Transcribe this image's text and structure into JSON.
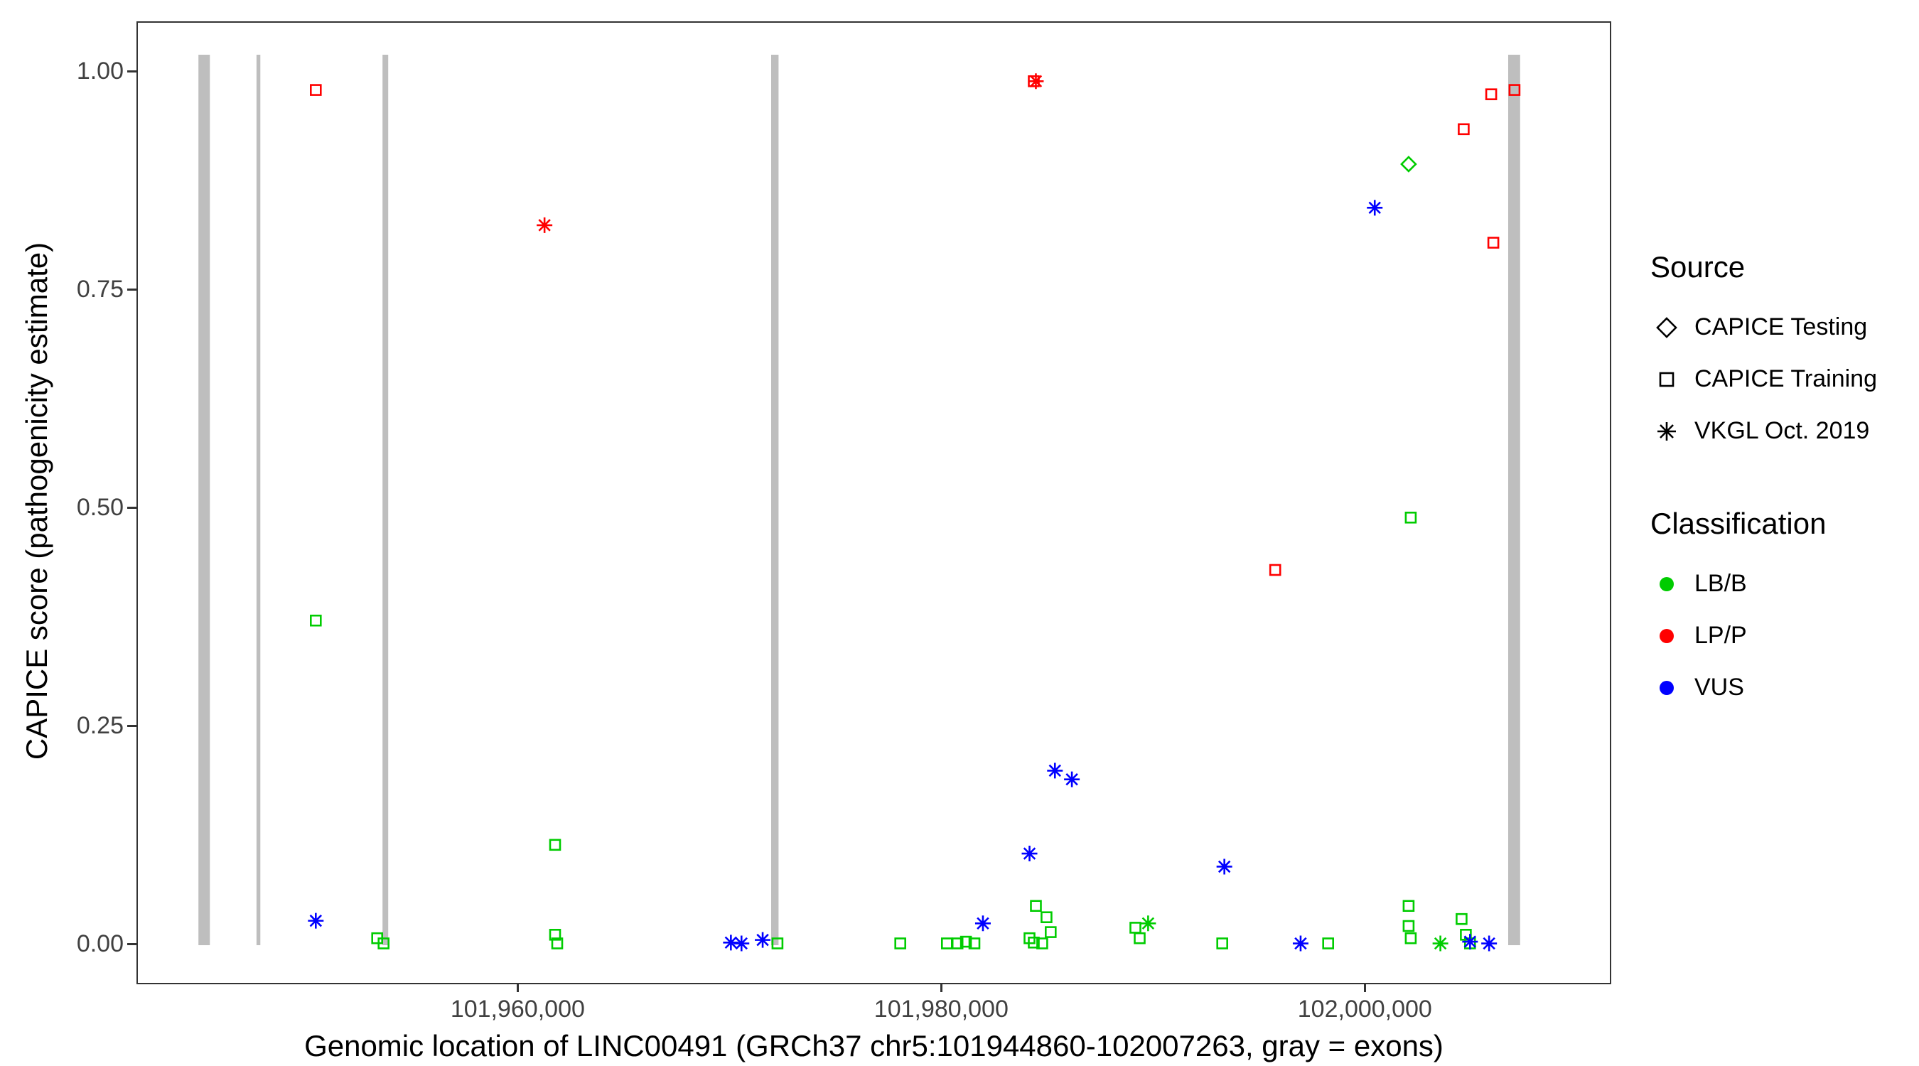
{
  "figure": {
    "background": "#FFFFFF"
  },
  "axes": {
    "y_title": "CAPICE score (pathogenicity estimate)",
    "x_title": "Genomic location of LINC00491 (GRCh37 chr5:101944860-102007263, gray = exons)",
    "y_ticks": [
      "0.00",
      "0.25",
      "0.50",
      "0.75",
      "1.00"
    ],
    "x_ticks": [
      "101,960,000",
      "101,980,000",
      "102,000,000"
    ]
  },
  "legend": {
    "source": {
      "title": "Source",
      "items": [
        {
          "shape": "diamond",
          "label": "CAPICE Testing"
        },
        {
          "shape": "square",
          "label": "CAPICE Training"
        },
        {
          "shape": "asterisk",
          "label": "VKGL Oct. 2019"
        }
      ]
    },
    "classification": {
      "title": "Classification",
      "items": [
        {
          "color": "#00CC00",
          "label": "LB/B"
        },
        {
          "color": "#FF0000",
          "label": "LP/P"
        },
        {
          "color": "#0000FF",
          "label": "VUS"
        }
      ]
    }
  },
  "chart_data": {
    "type": "scatter",
    "title": "",
    "xlabel": "Genomic location of LINC00491 (GRCh37 chr5:101944860-102007263, gray = exons)",
    "ylabel": "CAPICE score (pathogenicity estimate)",
    "xlim": [
      101942000,
      102011500
    ],
    "ylim": [
      0,
      1
    ],
    "grid": false,
    "legend_position": "right",
    "x_tick_values": [
      101960000,
      101980000,
      102000000
    ],
    "y_tick_values": [
      0,
      0.25,
      0.5,
      0.75,
      1.0
    ],
    "exon_color": "#BEBEBE",
    "exons_gray": [
      [
        101944860,
        101945400
      ],
      [
        101947600,
        101947780
      ],
      [
        101953550,
        101953820
      ],
      [
        101971900,
        101972250
      ],
      [
        102006700,
        102007263
      ]
    ],
    "colors": {
      "LB/B": "#00CC00",
      "LP/P": "#FF0000",
      "VUS": "#0000FF"
    },
    "shapes": {
      "CAPICE Testing": "diamond",
      "CAPICE Training": "square",
      "VKGL Oct. 2019": "asterisk"
    },
    "points": [
      {
        "x": 101950400,
        "y": 0.98,
        "source": "CAPICE Training",
        "class": "LP/P"
      },
      {
        "x": 101961200,
        "y": 0.825,
        "source": "VKGL Oct. 2019",
        "class": "LP/P"
      },
      {
        "x": 101984300,
        "y": 0.99,
        "source": "CAPICE Training",
        "class": "LP/P"
      },
      {
        "x": 101984400,
        "y": 0.99,
        "source": "VKGL Oct. 2019",
        "class": "LP/P"
      },
      {
        "x": 101995700,
        "y": 0.43,
        "source": "CAPICE Training",
        "class": "LP/P"
      },
      {
        "x": 102004600,
        "y": 0.935,
        "source": "CAPICE Training",
        "class": "LP/P"
      },
      {
        "x": 102005900,
        "y": 0.975,
        "source": "CAPICE Training",
        "class": "LP/P"
      },
      {
        "x": 102007000,
        "y": 0.98,
        "source": "CAPICE Training",
        "class": "LP/P"
      },
      {
        "x": 102006000,
        "y": 0.805,
        "source": "CAPICE Training",
        "class": "LP/P"
      },
      {
        "x": 102002000,
        "y": 0.895,
        "source": "CAPICE Testing",
        "class": "LB/B"
      },
      {
        "x": 101950400,
        "y": 0.372,
        "source": "CAPICE Training",
        "class": "LB/B"
      },
      {
        "x": 101961700,
        "y": 0.115,
        "source": "CAPICE Training",
        "class": "LB/B"
      },
      {
        "x": 102002100,
        "y": 0.49,
        "source": "CAPICE Training",
        "class": "LB/B"
      },
      {
        "x": 101953300,
        "y": 0.008,
        "source": "CAPICE Training",
        "class": "LB/B"
      },
      {
        "x": 101953600,
        "y": 0.002,
        "source": "CAPICE Training",
        "class": "LB/B"
      },
      {
        "x": 101961700,
        "y": 0.012,
        "source": "CAPICE Training",
        "class": "LB/B"
      },
      {
        "x": 101961800,
        "y": 0.002,
        "source": "CAPICE Training",
        "class": "LB/B"
      },
      {
        "x": 101972200,
        "y": 0.002,
        "source": "CAPICE Training",
        "class": "LB/B"
      },
      {
        "x": 101978000,
        "y": 0.002,
        "source": "CAPICE Training",
        "class": "LB/B"
      },
      {
        "x": 101980200,
        "y": 0.002,
        "source": "CAPICE Training",
        "class": "LB/B"
      },
      {
        "x": 101980700,
        "y": 0.002,
        "source": "CAPICE Training",
        "class": "LB/B"
      },
      {
        "x": 101981100,
        "y": 0.004,
        "source": "CAPICE Training",
        "class": "LB/B"
      },
      {
        "x": 101981500,
        "y": 0.002,
        "source": "CAPICE Training",
        "class": "LB/B"
      },
      {
        "x": 101984400,
        "y": 0.045,
        "source": "CAPICE Training",
        "class": "LB/B"
      },
      {
        "x": 101984900,
        "y": 0.032,
        "source": "CAPICE Training",
        "class": "LB/B"
      },
      {
        "x": 101985100,
        "y": 0.015,
        "source": "CAPICE Training",
        "class": "LB/B"
      },
      {
        "x": 101984100,
        "y": 0.008,
        "source": "CAPICE Training",
        "class": "LB/B"
      },
      {
        "x": 101984300,
        "y": 0.003,
        "source": "CAPICE Training",
        "class": "LB/B"
      },
      {
        "x": 101984700,
        "y": 0.002,
        "source": "CAPICE Training",
        "class": "LB/B"
      },
      {
        "x": 101989100,
        "y": 0.02,
        "source": "CAPICE Training",
        "class": "LB/B"
      },
      {
        "x": 101989300,
        "y": 0.008,
        "source": "CAPICE Training",
        "class": "LB/B"
      },
      {
        "x": 101989700,
        "y": 0.025,
        "source": "VKGL Oct. 2019",
        "class": "LB/B"
      },
      {
        "x": 101993200,
        "y": 0.002,
        "source": "CAPICE Training",
        "class": "LB/B"
      },
      {
        "x": 101998200,
        "y": 0.002,
        "source": "CAPICE Training",
        "class": "LB/B"
      },
      {
        "x": 102002000,
        "y": 0.045,
        "source": "CAPICE Training",
        "class": "LB/B"
      },
      {
        "x": 102002000,
        "y": 0.022,
        "source": "CAPICE Training",
        "class": "LB/B"
      },
      {
        "x": 102002100,
        "y": 0.008,
        "source": "CAPICE Training",
        "class": "LB/B"
      },
      {
        "x": 102003500,
        "y": 0.002,
        "source": "VKGL Oct. 2019",
        "class": "LB/B"
      },
      {
        "x": 102004500,
        "y": 0.03,
        "source": "CAPICE Training",
        "class": "LB/B"
      },
      {
        "x": 102004700,
        "y": 0.012,
        "source": "CAPICE Training",
        "class": "LB/B"
      },
      {
        "x": 102004900,
        "y": 0.002,
        "source": "CAPICE Training",
        "class": "LB/B"
      },
      {
        "x": 101950400,
        "y": 0.028,
        "source": "VKGL Oct. 2019",
        "class": "VUS"
      },
      {
        "x": 101970000,
        "y": 0.003,
        "source": "VKGL Oct. 2019",
        "class": "VUS"
      },
      {
        "x": 101970500,
        "y": 0.002,
        "source": "VKGL Oct. 2019",
        "class": "VUS"
      },
      {
        "x": 101971500,
        "y": 0.006,
        "source": "VKGL Oct. 2019",
        "class": "VUS"
      },
      {
        "x": 101981900,
        "y": 0.025,
        "source": "VKGL Oct. 2019",
        "class": "VUS"
      },
      {
        "x": 101984100,
        "y": 0.105,
        "source": "VKGL Oct. 2019",
        "class": "VUS"
      },
      {
        "x": 101985300,
        "y": 0.2,
        "source": "VKGL Oct. 2019",
        "class": "VUS"
      },
      {
        "x": 101986100,
        "y": 0.19,
        "source": "VKGL Oct. 2019",
        "class": "VUS"
      },
      {
        "x": 101993300,
        "y": 0.09,
        "source": "VKGL Oct. 2019",
        "class": "VUS"
      },
      {
        "x": 102000400,
        "y": 0.845,
        "source": "VKGL Oct. 2019",
        "class": "VUS"
      },
      {
        "x": 101996900,
        "y": 0.002,
        "source": "VKGL Oct. 2019",
        "class": "VUS"
      },
      {
        "x": 102004900,
        "y": 0.004,
        "source": "VKGL Oct. 2019",
        "class": "VUS"
      },
      {
        "x": 102005800,
        "y": 0.002,
        "source": "VKGL Oct. 2019",
        "class": "VUS"
      }
    ]
  }
}
